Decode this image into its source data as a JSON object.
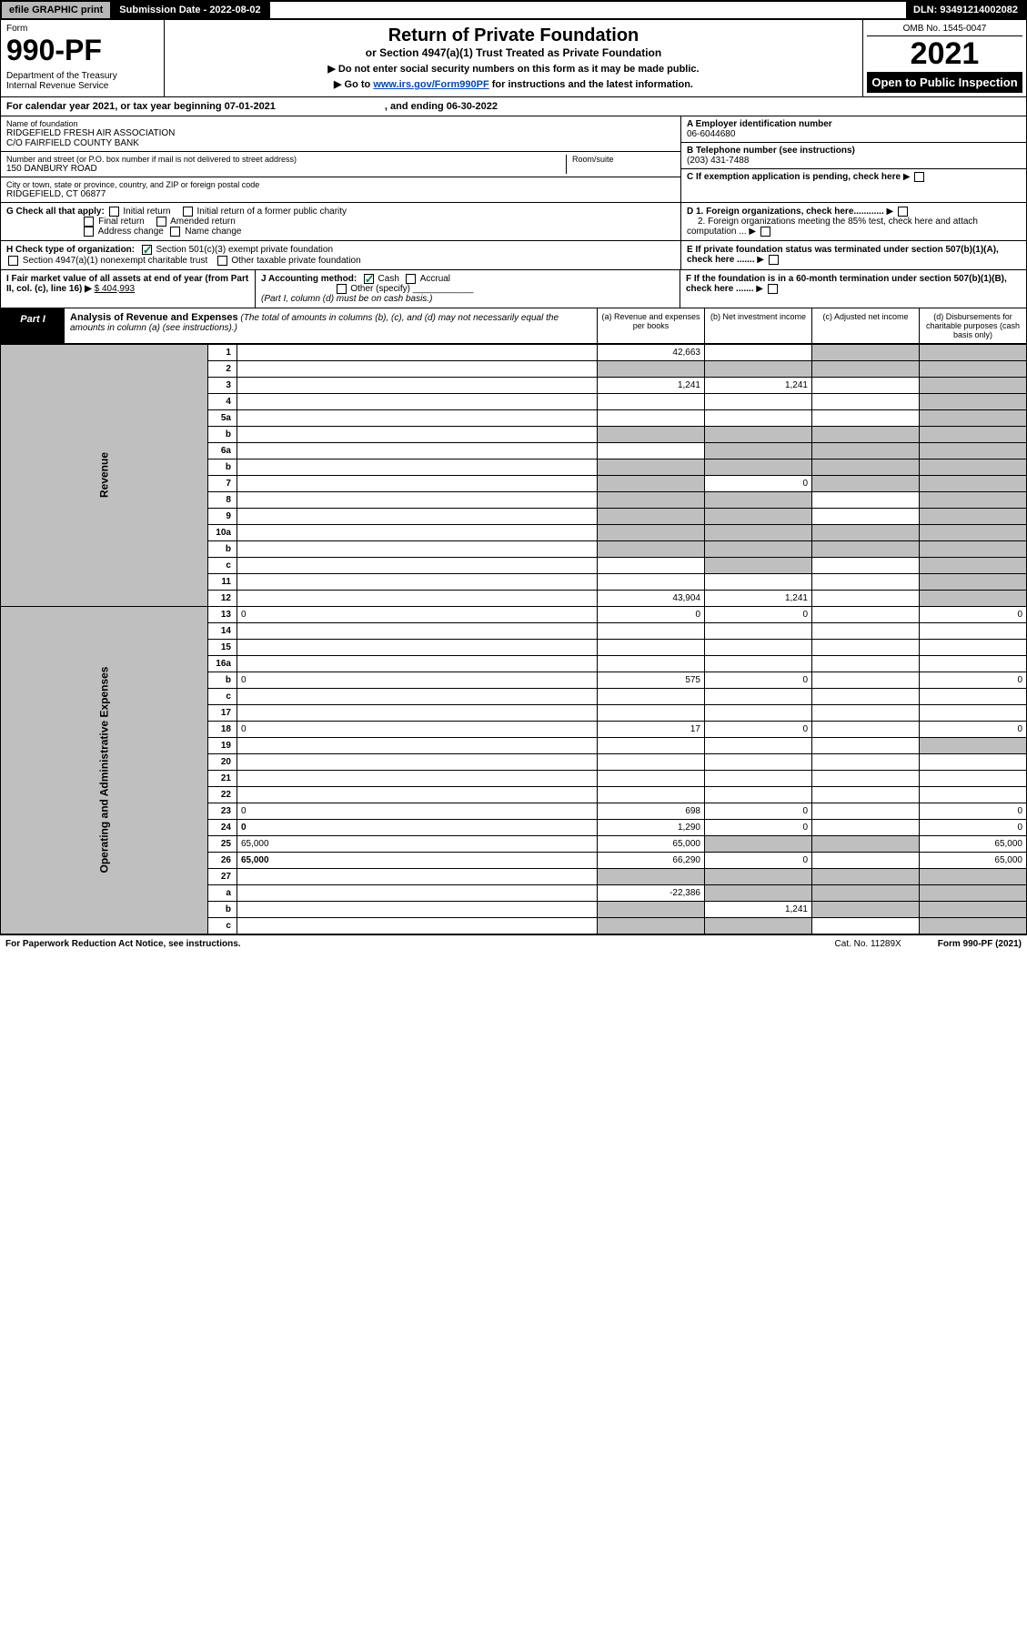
{
  "topbar": {
    "efile": "efile GRAPHIC print",
    "subdate_label": "Submission Date - 2022-08-02",
    "dln": "DLN: 93491214002082"
  },
  "header": {
    "form_label": "Form",
    "form_num": "990-PF",
    "dept": "Department of the Treasury\nInternal Revenue Service",
    "title": "Return of Private Foundation",
    "subtitle": "or Section 4947(a)(1) Trust Treated as Private Foundation",
    "instr1": "▶ Do not enter social security numbers on this form as it may be made public.",
    "instr2_pre": "▶ Go to ",
    "instr2_link": "www.irs.gov/Form990PF",
    "instr2_post": " for instructions and the latest information.",
    "omb": "OMB No. 1545-0047",
    "year": "2021",
    "open": "Open to Public Inspection"
  },
  "calyear": {
    "text": "For calendar year 2021, or tax year beginning 07-01-2021",
    "ending": ", and ending 06-30-2022"
  },
  "info": {
    "name_lbl": "Name of foundation",
    "name": "RIDGEFIELD FRESH AIR ASSOCIATION\nC/O FAIRFIELD COUNTY BANK",
    "addr_lbl": "Number and street (or P.O. box number if mail is not delivered to street address)",
    "addr": "150 DANBURY ROAD",
    "room_lbl": "Room/suite",
    "city_lbl": "City or town, state or province, country, and ZIP or foreign postal code",
    "city": "RIDGEFIELD, CT  06877",
    "ein_lbl": "A Employer identification number",
    "ein": "06-6044680",
    "phone_lbl": "B Telephone number (see instructions)",
    "phone": "(203) 431-7488",
    "c_lbl": "C If exemption application is pending, check here"
  },
  "checks": {
    "g_label": "G Check all that apply:",
    "g_opts": [
      "Initial return",
      "Initial return of a former public charity",
      "Final return",
      "Amended return",
      "Address change",
      "Name change"
    ],
    "d1": "D 1. Foreign organizations, check here............",
    "d2": "2. Foreign organizations meeting the 85% test, check here and attach computation ...",
    "h_label": "H Check type of organization:",
    "h1": "Section 501(c)(3) exempt private foundation",
    "h2": "Section 4947(a)(1) nonexempt charitable trust",
    "h3": "Other taxable private foundation",
    "e_lbl": "E  If private foundation status was terminated under section 507(b)(1)(A), check here .......",
    "i_lbl": "I Fair market value of all assets at end of year (from Part II, col. (c), line 16) ▶",
    "i_val": "$  404,993",
    "j_lbl": "J Accounting method:",
    "j_cash": "Cash",
    "j_accrual": "Accrual",
    "j_other": "Other (specify)",
    "j_note": "(Part I, column (d) must be on cash basis.)",
    "f_lbl": "F  If the foundation is in a 60-month termination under section 507(b)(1)(B), check here ......."
  },
  "part1": {
    "label": "Part I",
    "title": "Analysis of Revenue and Expenses",
    "title_note": " (The total of amounts in columns (b), (c), and (d) may not necessarily equal the amounts in column (a) (see instructions).)",
    "col_a": "(a) Revenue and expenses per books",
    "col_b": "(b) Net investment income",
    "col_c": "(c) Adjusted net income",
    "col_d": "(d) Disbursements for charitable purposes (cash basis only)"
  },
  "sides": {
    "revenue": "Revenue",
    "expenses": "Operating and Administrative Expenses"
  },
  "rows": [
    {
      "n": "1",
      "d": "",
      "a": "42,663",
      "b": "",
      "c": "",
      "shade": [
        "c",
        "d"
      ]
    },
    {
      "n": "2",
      "d": "",
      "a": "",
      "b": "",
      "c": "",
      "shade": [
        "a",
        "b",
        "c",
        "d"
      ]
    },
    {
      "n": "3",
      "d": "",
      "a": "1,241",
      "b": "1,241",
      "c": "",
      "shade": [
        "d"
      ]
    },
    {
      "n": "4",
      "d": "",
      "a": "",
      "b": "",
      "c": "",
      "shade": [
        "d"
      ]
    },
    {
      "n": "5a",
      "d": "",
      "a": "",
      "b": "",
      "c": "",
      "shade": [
        "d"
      ]
    },
    {
      "n": "b",
      "d": "",
      "a": "",
      "b": "",
      "c": "",
      "shade": [
        "a",
        "b",
        "c",
        "d"
      ]
    },
    {
      "n": "6a",
      "d": "",
      "a": "",
      "b": "",
      "c": "",
      "shade": [
        "b",
        "c",
        "d"
      ]
    },
    {
      "n": "b",
      "d": "",
      "a": "",
      "b": "",
      "c": "",
      "shade": [
        "a",
        "b",
        "c",
        "d"
      ]
    },
    {
      "n": "7",
      "d": "",
      "a": "",
      "b": "0",
      "c": "",
      "shade": [
        "a",
        "c",
        "d"
      ]
    },
    {
      "n": "8",
      "d": "",
      "a": "",
      "b": "",
      "c": "",
      "shade": [
        "a",
        "b",
        "d"
      ]
    },
    {
      "n": "9",
      "d": "",
      "a": "",
      "b": "",
      "c": "",
      "shade": [
        "a",
        "b",
        "d"
      ]
    },
    {
      "n": "10a",
      "d": "",
      "a": "",
      "b": "",
      "c": "",
      "shade": [
        "a",
        "b",
        "c",
        "d"
      ]
    },
    {
      "n": "b",
      "d": "",
      "a": "",
      "b": "",
      "c": "",
      "shade": [
        "a",
        "b",
        "c",
        "d"
      ]
    },
    {
      "n": "c",
      "d": "",
      "a": "",
      "b": "",
      "c": "",
      "shade": [
        "b",
        "d"
      ]
    },
    {
      "n": "11",
      "d": "",
      "a": "",
      "b": "",
      "c": "",
      "shade": [
        "d"
      ]
    },
    {
      "n": "12",
      "d": "",
      "a": "43,904",
      "b": "1,241",
      "c": "",
      "bold": true,
      "shade": [
        "d"
      ]
    },
    {
      "n": "13",
      "d": "0",
      "a": "0",
      "b": "0",
      "c": ""
    },
    {
      "n": "14",
      "d": "",
      "a": "",
      "b": "",
      "c": ""
    },
    {
      "n": "15",
      "d": "",
      "a": "",
      "b": "",
      "c": ""
    },
    {
      "n": "16a",
      "d": "",
      "a": "",
      "b": "",
      "c": ""
    },
    {
      "n": "b",
      "d": "0",
      "a": "575",
      "b": "0",
      "c": ""
    },
    {
      "n": "c",
      "d": "",
      "a": "",
      "b": "",
      "c": ""
    },
    {
      "n": "17",
      "d": "",
      "a": "",
      "b": "",
      "c": ""
    },
    {
      "n": "18",
      "d": "0",
      "a": "17",
      "b": "0",
      "c": ""
    },
    {
      "n": "19",
      "d": "",
      "a": "",
      "b": "",
      "c": "",
      "shade": [
        "d"
      ]
    },
    {
      "n": "20",
      "d": "",
      "a": "",
      "b": "",
      "c": ""
    },
    {
      "n": "21",
      "d": "",
      "a": "",
      "b": "",
      "c": ""
    },
    {
      "n": "22",
      "d": "",
      "a": "",
      "b": "",
      "c": ""
    },
    {
      "n": "23",
      "d": "0",
      "a": "698",
      "b": "0",
      "c": ""
    },
    {
      "n": "24",
      "d": "0",
      "a": "1,290",
      "b": "0",
      "c": "",
      "bold": true
    },
    {
      "n": "25",
      "d": "65,000",
      "a": "65,000",
      "b": "",
      "c": "",
      "shade": [
        "b",
        "c"
      ]
    },
    {
      "n": "26",
      "d": "65,000",
      "a": "66,290",
      "b": "0",
      "c": "",
      "bold": true
    },
    {
      "n": "27",
      "d": "",
      "a": "",
      "b": "",
      "c": "",
      "shade": [
        "a",
        "b",
        "c",
        "d"
      ]
    },
    {
      "n": "a",
      "d": "",
      "a": "-22,386",
      "b": "",
      "c": "",
      "bold": true,
      "shade": [
        "b",
        "c",
        "d"
      ]
    },
    {
      "n": "b",
      "d": "",
      "a": "",
      "b": "1,241",
      "c": "",
      "bold": true,
      "shade": [
        "a",
        "c",
        "d"
      ]
    },
    {
      "n": "c",
      "d": "",
      "a": "",
      "b": "",
      "c": "",
      "bold": true,
      "shade": [
        "a",
        "b",
        "d"
      ]
    }
  ],
  "footer": {
    "pra": "For Paperwork Reduction Act Notice, see instructions.",
    "cat": "Cat. No. 11289X",
    "form": "Form 990-PF (2021)"
  }
}
